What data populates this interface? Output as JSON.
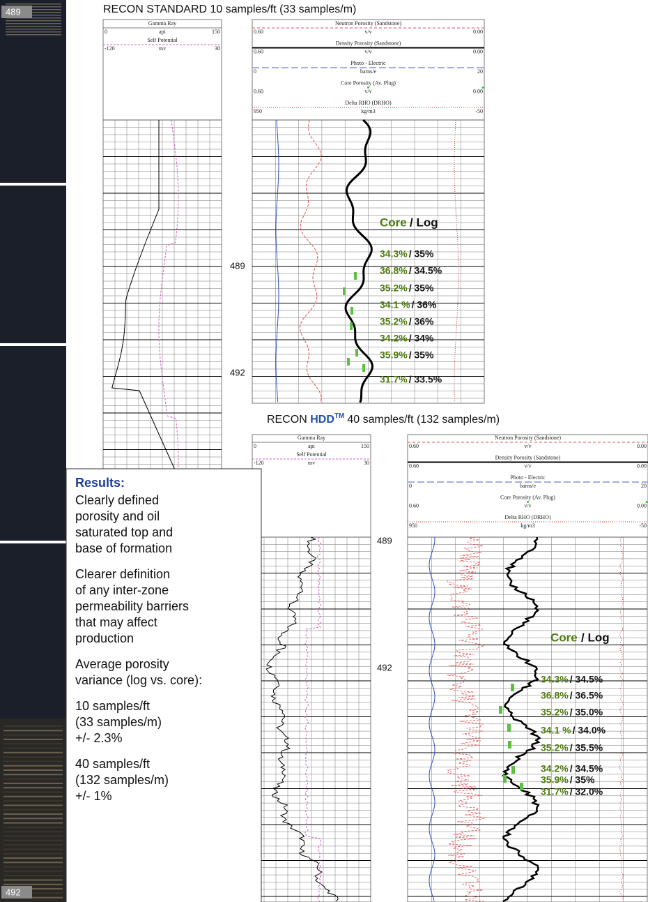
{
  "core_photo": {
    "depth_labels": [
      "489",
      "492"
    ]
  },
  "standard": {
    "title": "RECON STANDARD 10 samples/ft (33 samples/m)",
    "depth_labels": [
      "489",
      "492"
    ],
    "gr_track": [
      {
        "name": "Gamma Ray",
        "min": "0",
        "unit": "api",
        "max": "150"
      },
      {
        "name": "Self Potential",
        "min": "-120",
        "unit": "mv",
        "max": "30"
      }
    ],
    "por_track": [
      {
        "name": "Neutron Porosity (Sandstone)",
        "min": "0.60",
        "unit": "v/v",
        "max": "0.00"
      },
      {
        "name": "Density Porosity (Sandstone)",
        "min": "0.60",
        "unit": "v/v",
        "max": "0.00"
      },
      {
        "name": "Photo - Electric",
        "min": "0",
        "unit": "barns/e",
        "max": "20"
      },
      {
        "name": "Core Porosity (Av. Plug)",
        "min": "0.60",
        "unit": "v/v",
        "max": "0.00"
      },
      {
        "name": "Delta RHO (DRHO)",
        "min": "950",
        "unit": "kg/m3",
        "max": "-50"
      }
    ],
    "comparison": {
      "heading_core": "Core",
      "heading_log": "/ Log",
      "rows": [
        {
          "core": "34.3%",
          "log": "/ 35%"
        },
        {
          "core": "36.8%",
          "log": "/ 34.5%"
        },
        {
          "core": "35.2%",
          "log": "/ 35%"
        },
        {
          "core": "34.1 %",
          "log": "/ 36%"
        },
        {
          "core": "35.2%",
          "log": "/ 36%"
        },
        {
          "core": "34.2%",
          "log": "/ 34%"
        },
        {
          "core": "35.9%",
          "log": "/ 35%"
        },
        {
          "core": "31.7%",
          "log": "/ 33.5%"
        }
      ]
    }
  },
  "hdd": {
    "title_prefix": "RECON",
    "title_brand": "HDD",
    "title_mark": "TM",
    "title_rest": "40 samples/ft (132 samples/m)",
    "depth_labels": [
      "489",
      "492"
    ],
    "gr_track": [
      {
        "name": "Gamma Ray",
        "min": "0",
        "unit": "api",
        "max": "150"
      },
      {
        "name": "Self Potential",
        "min": "-120",
        "unit": "mv",
        "max": "30"
      }
    ],
    "por_track": [
      {
        "name": "Neutron Porosity (Sandstone)",
        "min": "0.60",
        "unit": "v/v",
        "max": "0.00"
      },
      {
        "name": "Density Porosity (Sandstone)",
        "min": "0.60",
        "unit": "v/v",
        "max": "0.00"
      },
      {
        "name": "Photo - Electric",
        "min": "0",
        "unit": "barns/e",
        "max": "20"
      },
      {
        "name": "Core Porosity (Av. Plug)",
        "min": "0.60",
        "unit": "v/v",
        "max": "0.00"
      },
      {
        "name": "Delta RHO (DRHO)",
        "min": "950",
        "unit": "kg/m3",
        "max": "-50"
      }
    ],
    "comparison": {
      "heading_core": "Core",
      "heading_log": "/ Log",
      "rows": [
        {
          "core": "34.3%",
          "log": "/ 34.5%"
        },
        {
          "core": "36.8%",
          "log": "/ 36.5%"
        },
        {
          "core": "35.2%",
          "log": "/ 35.0%"
        },
        {
          "core": "34.1 %",
          "log": "/ 34.0%"
        },
        {
          "core": "35.2%",
          "log": "/ 35.5%"
        },
        {
          "core": "34.2%",
          "log": "/ 34.5%"
        },
        {
          "core": "35.9%",
          "log": "/ 35%"
        },
        {
          "core": "31.7%",
          "log": "/ 32.0%"
        }
      ]
    }
  },
  "results": {
    "heading": "Results:",
    "paragraphs": [
      [
        "Clearly defined",
        "porosity and oil",
        "saturated top and",
        "base of formation"
      ],
      [
        "Clearer definition",
        "of any inter-zone",
        "permeability barriers",
        "that may affect",
        "production"
      ],
      [
        "Average porosity",
        "variance (log vs. core):"
      ],
      [
        "10 samples/ft",
        "(33 samples/m)",
        "+/- 2.3%"
      ],
      [
        "40 samples/ft",
        "(132 samples/m)",
        "+/- 1%"
      ]
    ]
  }
}
